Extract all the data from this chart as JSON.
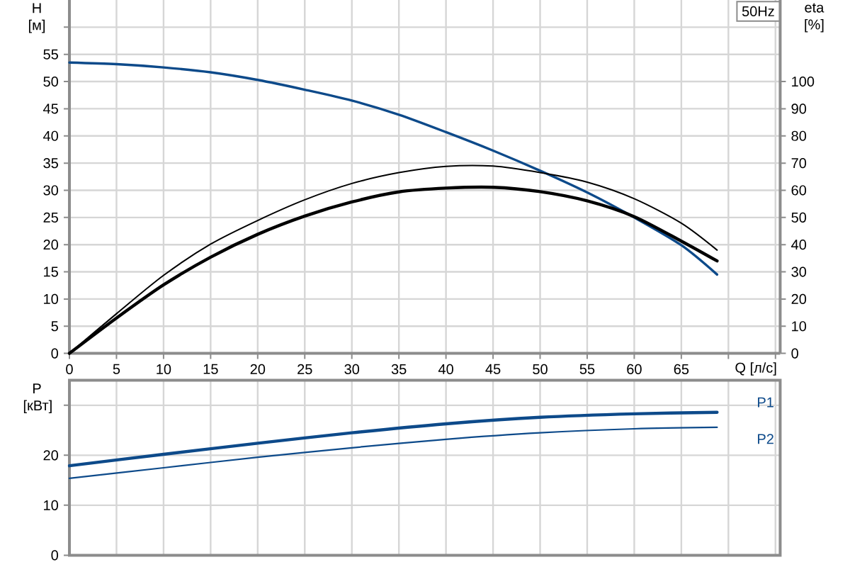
{
  "chart_data": [
    {
      "type": "line",
      "title": "50Hz",
      "xlabel": "Q [л/с]",
      "ylabel": "H [м]",
      "y2label": "eta [%]",
      "x": [
        0,
        5,
        10,
        15,
        20,
        25,
        30,
        35,
        40,
        45,
        50,
        55,
        60,
        65,
        68.8
      ],
      "series": [
        {
          "color": "#0d4a8a",
          "axis": "y",
          "values": [
            53.5,
            53.2,
            52.6,
            51.7,
            50.3,
            48.5,
            46.5,
            43.9,
            40.7,
            37.3,
            33.6,
            29.6,
            25.0,
            19.9,
            14.5
          ]
        },
        {
          "color": "#000000",
          "axis": "y2",
          "values": [
            0,
            14.6,
            28.7,
            40.2,
            48.9,
            56.5,
            62.5,
            66.5,
            68.8,
            68.9,
            66.5,
            63.0,
            56.9,
            47.9,
            38.0
          ]
        },
        {
          "color": "#000000",
          "axis": "y2",
          "values": [
            0,
            13.0,
            25.2,
            35.4,
            43.8,
            50.5,
            55.7,
            59.4,
            60.8,
            61.1,
            59.5,
            56.1,
            50.3,
            41.3,
            34.0
          ]
        }
      ],
      "xlim": [
        0,
        75.5
      ],
      "xticks": [
        0,
        5,
        10,
        15,
        20,
        25,
        30,
        35,
        40,
        45,
        50,
        55,
        60,
        65,
        {
          "value": 70,
          "label": null
        },
        {
          "value": 75,
          "label": null
        }
      ],
      "ylim": [
        0,
        65
      ],
      "yticks": [
        0,
        5,
        10,
        15,
        20,
        25,
        30,
        35,
        40,
        45,
        50,
        55,
        {
          "value": 60,
          "label": null
        }
      ],
      "y2lim": [
        0,
        130
      ],
      "y2ticks": [
        0,
        10,
        20,
        30,
        40,
        50,
        60,
        70,
        80,
        90,
        100
      ],
      "grid": true
    },
    {
      "type": "line",
      "ylabel": "P [кВт]",
      "x": [
        0,
        10,
        20,
        30,
        40,
        50,
        60,
        68.8
      ],
      "series": [
        {
          "name": "P1",
          "color": "#0d4a8a",
          "values": [
            17.9,
            20.2,
            22.4,
            24.5,
            26.3,
            27.6,
            28.3,
            28.6
          ]
        },
        {
          "name": "P2",
          "color": "#0d4a8a",
          "values": [
            15.4,
            17.5,
            19.6,
            21.5,
            23.2,
            24.5,
            25.3,
            25.6
          ]
        }
      ],
      "xlim": [
        0,
        75.5
      ],
      "xticks": [
        0,
        5,
        10,
        15,
        20,
        25,
        30,
        35,
        40,
        45,
        50,
        55,
        60,
        65,
        70,
        75
      ],
      "ylim": [
        0,
        35
      ],
      "yticks": [
        0,
        10,
        20,
        {
          "value": 30,
          "label": null
        }
      ],
      "tick_labels": "y",
      "grid": true
    }
  ]
}
